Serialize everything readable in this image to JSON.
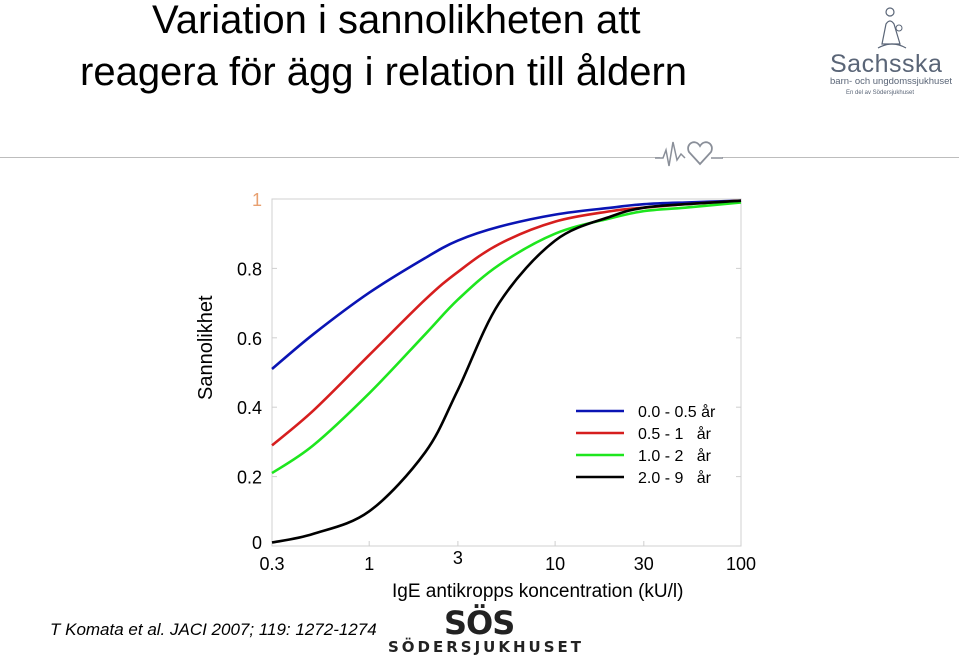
{
  "title": {
    "line1": "Variation i sannolikheten att",
    "line2": "reagera för ägg i relation till åldern"
  },
  "logos": {
    "sachsska_name": "Sachsska",
    "sachsska_sub": "barn- och ungdomssjukhuset",
    "sachsska_sub2": "En del av Södersjukhuset",
    "sos_mark": "SÖS",
    "sos_word": "SÖDERSJUKHUSET"
  },
  "citation": "T Komata et al. JACI 2007; 119: 1272-1274",
  "colors": {
    "blue": "#0a14b4",
    "red": "#d61e1e",
    "green": "#1ee61e",
    "black": "#000000",
    "tick_one": "#e8a070"
  },
  "chart_data": {
    "type": "line",
    "title": "",
    "xlabel": "IgE antikropps koncentration (kU/l)",
    "ylabel": "Sannolikhet",
    "xscale": "log",
    "xlim": [
      0.3,
      100
    ],
    "ylim": [
      0,
      1
    ],
    "x_ticks": [
      "0.3",
      "1",
      "3",
      "10",
      "30",
      "100"
    ],
    "x_tick_values": [
      0.3,
      1,
      3,
      10,
      30,
      100
    ],
    "y_ticks": [
      "0",
      "0.2",
      "0.4",
      "0.6",
      "0.8",
      "1"
    ],
    "y_tick_values": [
      0,
      0.2,
      0.4,
      0.6,
      0.8,
      1
    ],
    "grid": false,
    "legend_position": "bottom-right",
    "x": [
      0.3,
      0.5,
      1,
      2,
      3,
      5,
      10,
      20,
      30,
      50,
      100
    ],
    "series": [
      {
        "name": "0.0 - 0.5 år",
        "color": "#0a14b4",
        "values": [
          0.51,
          0.61,
          0.73,
          0.83,
          0.88,
          0.92,
          0.955,
          0.975,
          0.985,
          0.99,
          0.995
        ]
      },
      {
        "name": "0.5 - 1   år",
        "color": "#d61e1e",
        "values": [
          0.29,
          0.39,
          0.55,
          0.71,
          0.79,
          0.87,
          0.935,
          0.965,
          0.975,
          0.985,
          0.995
        ]
      },
      {
        "name": "1.0 - 2   år",
        "color": "#1ee61e",
        "values": [
          0.21,
          0.29,
          0.44,
          0.61,
          0.71,
          0.81,
          0.9,
          0.945,
          0.965,
          0.975,
          0.99
        ]
      },
      {
        "name": "2.0 - 9   år",
        "color": "#000000",
        "values": [
          0.01,
          0.035,
          0.1,
          0.27,
          0.45,
          0.7,
          0.88,
          0.95,
          0.975,
          0.985,
          0.995
        ]
      }
    ]
  }
}
